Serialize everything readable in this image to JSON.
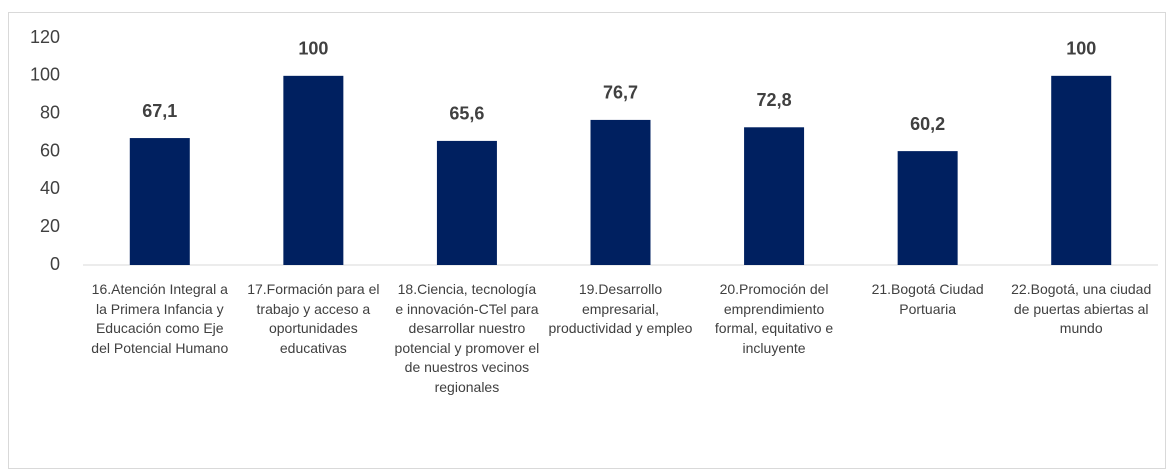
{
  "chart_data": {
    "type": "bar",
    "categories": [
      "16.Atención Integral a la Primera Infancia y Educación como Eje del Potencial Humano",
      "17.Formación para el trabajo y acceso a oportunidades educativas",
      "18.Ciencia, tecnología e innovación-CTel para desarrollar nuestro potencial y promover el de nuestros vecinos regionales",
      "19.Desarrollo empresarial, productividad y empleo",
      "20.Promoción del emprendimiento formal, equitativo e incluyente",
      "21.Bogotá Ciudad Portuaria",
      "22.Bogotá, una ciudad de puertas abiertas al mundo"
    ],
    "values": [
      67.1,
      100,
      65.6,
      76.7,
      72.8,
      60.2,
      100
    ],
    "value_labels": [
      "67,1",
      "100",
      "65,6",
      "76,7",
      "72,8",
      "60,2",
      "100"
    ],
    "color": "#002060",
    "ylim": [
      0,
      120
    ],
    "yticks": [
      0,
      20,
      40,
      60,
      80,
      100,
      120
    ],
    "grid": false
  }
}
